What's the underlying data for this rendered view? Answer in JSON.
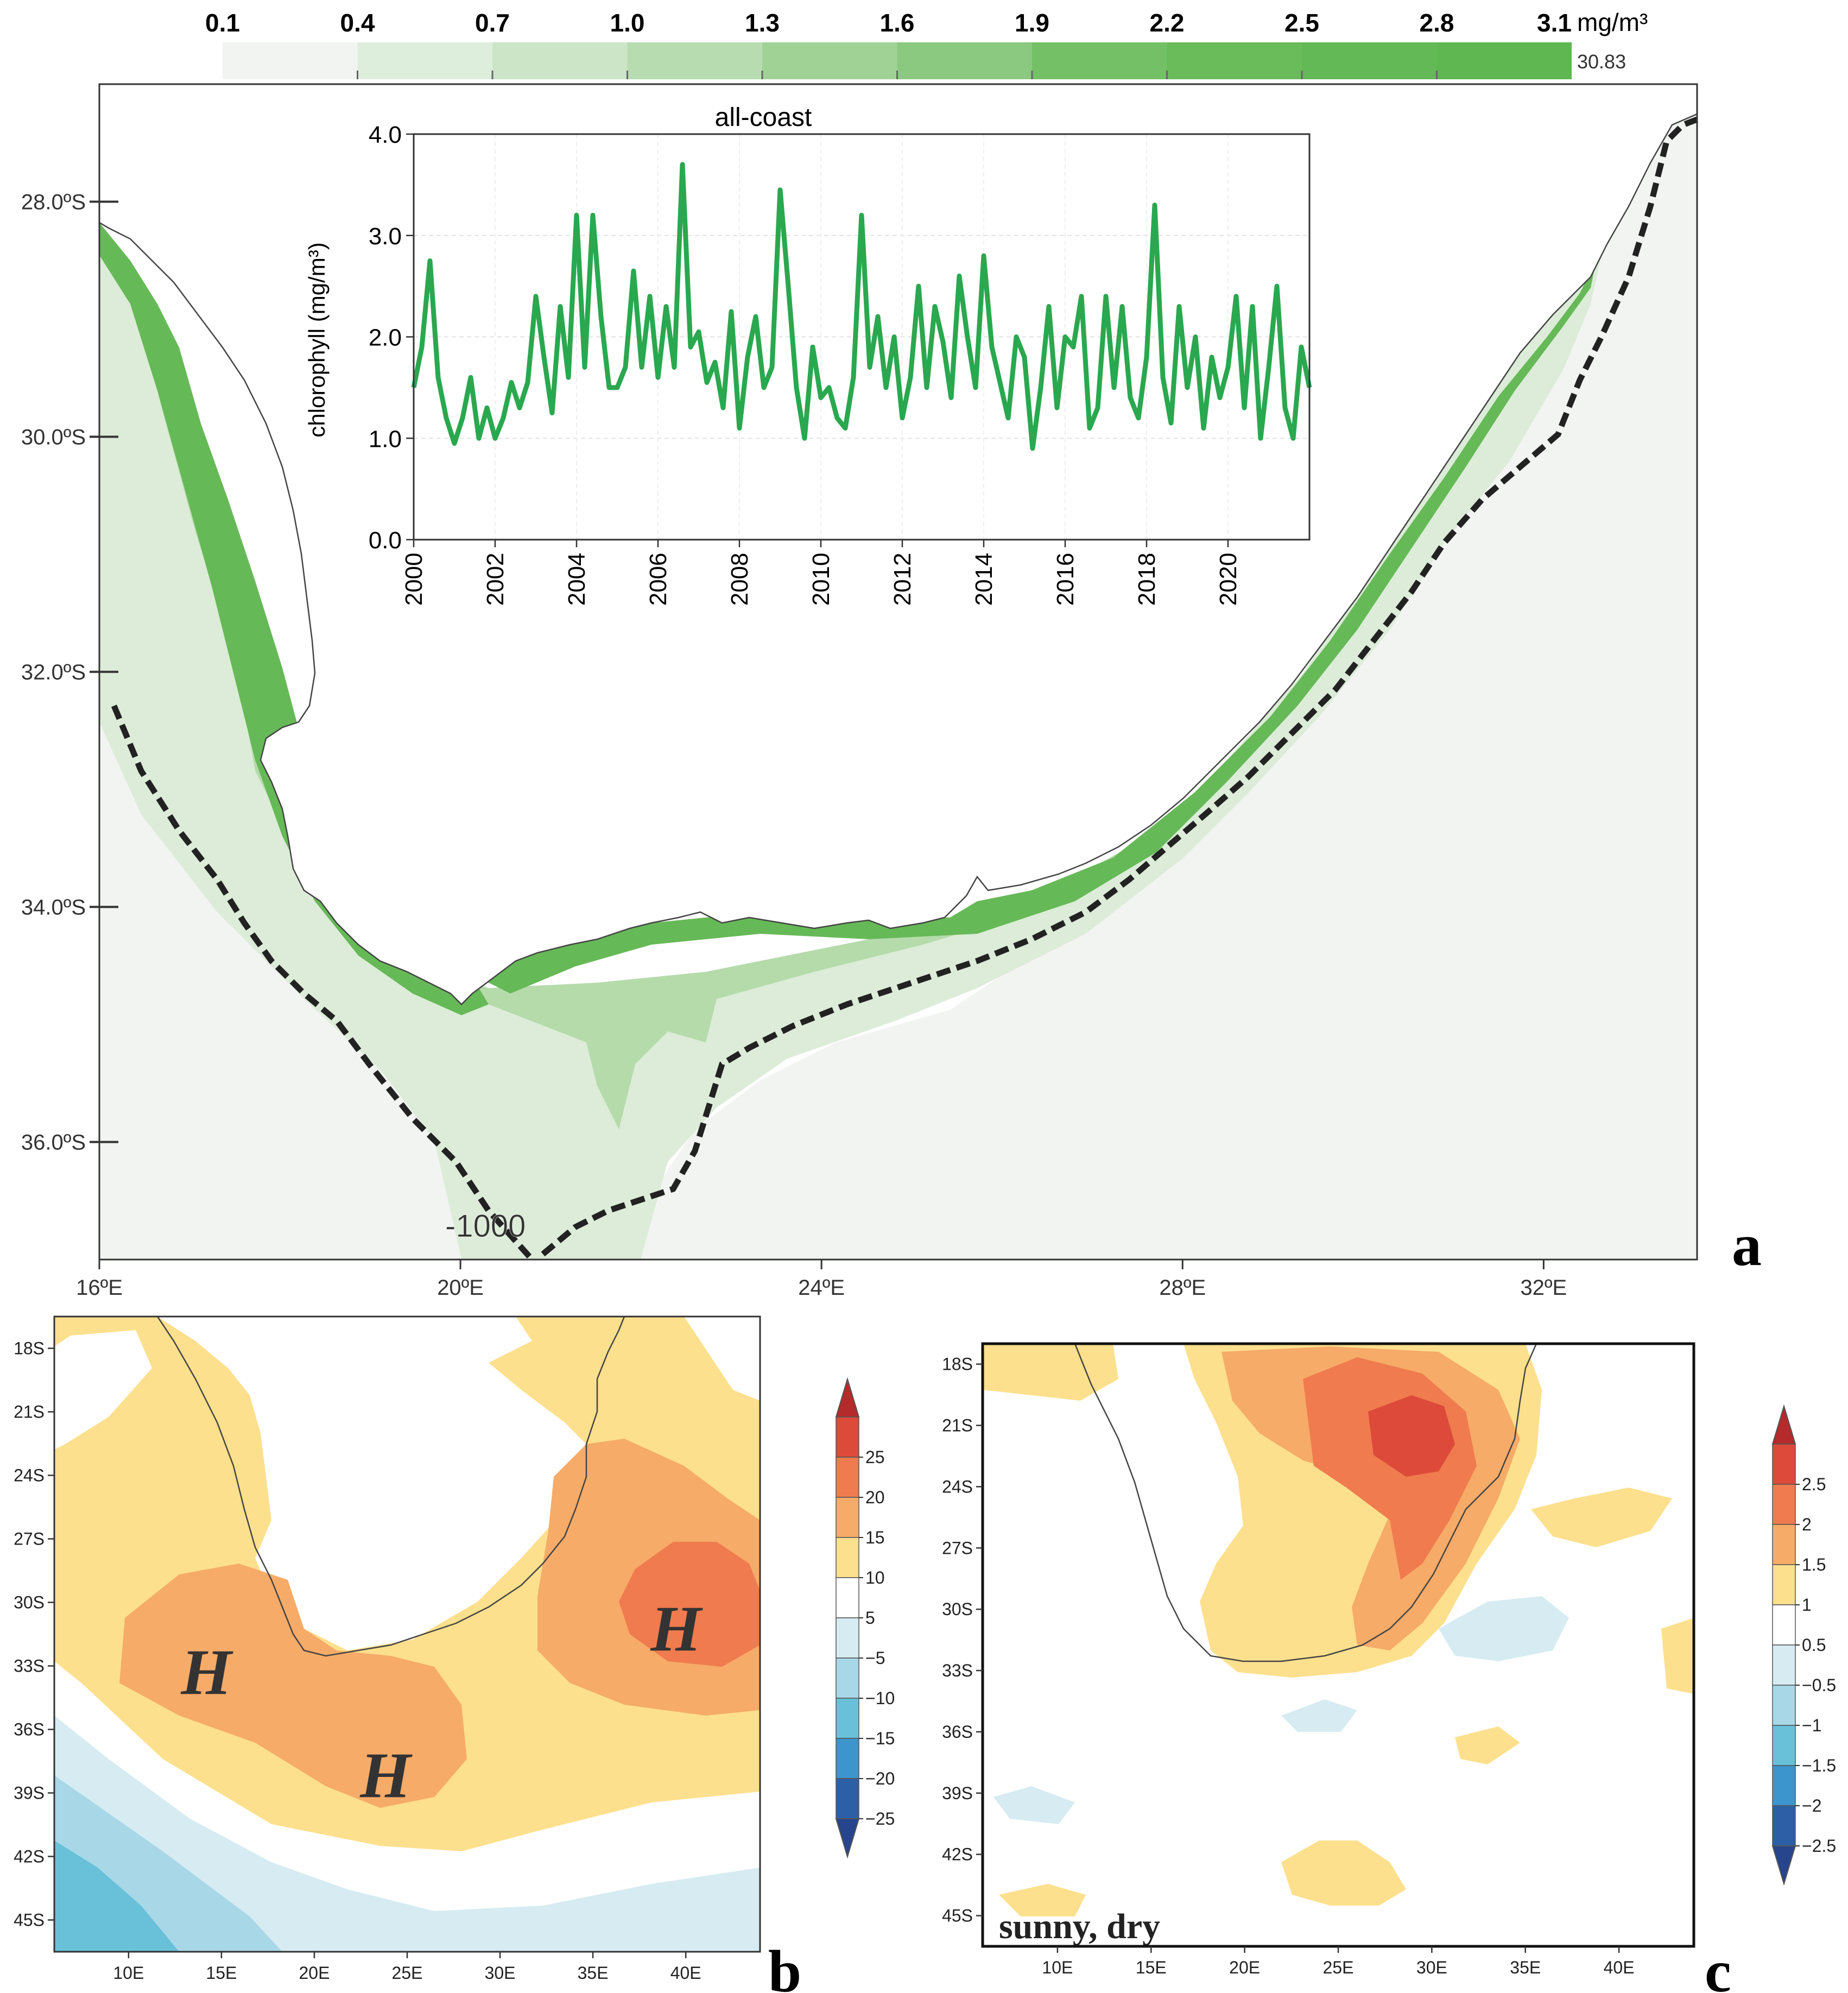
{
  "panel_letters": {
    "a": "a",
    "b": "b",
    "c": "c"
  },
  "chart_data": [
    {
      "id": "panel-a-map",
      "type": "heatmap",
      "title": "",
      "colorbar": {
        "ticks": [
          "0.1",
          "0.4",
          "0.7",
          "1.0",
          "1.3",
          "1.6",
          "1.9",
          "2.2",
          "2.5",
          "2.8",
          "3.1"
        ],
        "unit": "mg/m³",
        "max_label": "30.83",
        "colors": [
          "#f1f4f1",
          "#deeedc",
          "#cbe5c6",
          "#b7dcb0",
          "#a0d296",
          "#8ac97f",
          "#74c066",
          "#6abc5b",
          "#63b955",
          "#5fb751"
        ]
      },
      "x_ticks": [
        "16ºE",
        "20ºE",
        "24ºE",
        "28ºE",
        "32ºE"
      ],
      "x_values": [
        16,
        20,
        24,
        28,
        32
      ],
      "xlim": [
        16,
        33.7
      ],
      "y_ticks": [
        "28.0ºS",
        "30.0ºS",
        "32.0ºS",
        "34.0ºS",
        "36.0ºS"
      ],
      "y_values": [
        28,
        30,
        32,
        34,
        36
      ],
      "ylim": [
        27.0,
        37.0
      ],
      "contour_label": "-1000"
    },
    {
      "id": "panel-a-inset",
      "type": "line",
      "title": "all-coast",
      "xlabel": "",
      "ylabel": "chlorophyll (mg/m³)",
      "xlim": [
        2000,
        2022
      ],
      "ylim": [
        0,
        4
      ],
      "x_ticks": [
        "2000",
        "2002",
        "2004",
        "2006",
        "2008",
        "2010",
        "2012",
        "2014",
        "2016",
        "2018",
        "2020"
      ],
      "y_ticks": [
        "0.0",
        "1.0",
        "2.0",
        "3.0",
        "4.0"
      ],
      "line_color": "#2aa84f",
      "series": [
        {
          "name": "all-coast",
          "x": [
            2000.0,
            2000.2,
            2000.4,
            2000.6,
            2000.8,
            2001.0,
            2001.2,
            2001.4,
            2001.6,
            2001.8,
            2002.0,
            2002.2,
            2002.4,
            2002.6,
            2002.8,
            2003.0,
            2003.2,
            2003.4,
            2003.6,
            2003.8,
            2004.0,
            2004.2,
            2004.4,
            2004.6,
            2004.8,
            2005.0,
            2005.2,
            2005.4,
            2005.6,
            2005.8,
            2006.0,
            2006.2,
            2006.4,
            2006.6,
            2006.8,
            2007.0,
            2007.2,
            2007.4,
            2007.6,
            2007.8,
            2008.0,
            2008.2,
            2008.4,
            2008.6,
            2008.8,
            2009.0,
            2009.2,
            2009.4,
            2009.6,
            2009.8,
            2010.0,
            2010.2,
            2010.4,
            2010.6,
            2010.8,
            2011.0,
            2011.2,
            2011.4,
            2011.6,
            2011.8,
            2012.0,
            2012.2,
            2012.4,
            2012.6,
            2012.8,
            2013.0,
            2013.2,
            2013.4,
            2013.6,
            2013.8,
            2014.0,
            2014.2,
            2014.4,
            2014.6,
            2014.8,
            2015.0,
            2015.2,
            2015.4,
            2015.6,
            2015.8,
            2016.0,
            2016.2,
            2016.4,
            2016.6,
            2016.8,
            2017.0,
            2017.2,
            2017.4,
            2017.6,
            2017.8,
            2018.0,
            2018.2,
            2018.4,
            2018.6,
            2018.8,
            2019.0,
            2019.2,
            2019.4,
            2019.6,
            2019.8,
            2020.0,
            2020.2,
            2020.4,
            2020.6,
            2020.8,
            2021.0,
            2021.2,
            2021.4,
            2021.6,
            2021.8,
            2022.0
          ],
          "values": [
            1.5,
            1.9,
            2.75,
            1.6,
            1.2,
            0.95,
            1.2,
            1.6,
            1.0,
            1.3,
            1.0,
            1.2,
            1.55,
            1.3,
            1.55,
            2.4,
            1.8,
            1.25,
            2.3,
            1.6,
            3.2,
            1.7,
            3.2,
            2.2,
            1.5,
            1.5,
            1.7,
            2.65,
            1.7,
            2.4,
            1.6,
            2.3,
            1.7,
            3.7,
            1.9,
            2.05,
            1.55,
            1.75,
            1.3,
            2.25,
            1.1,
            1.8,
            2.2,
            1.5,
            1.7,
            3.45,
            2.5,
            1.5,
            1.0,
            1.9,
            1.4,
            1.5,
            1.2,
            1.1,
            1.6,
            3.2,
            1.7,
            2.2,
            1.5,
            2.0,
            1.2,
            1.6,
            2.5,
            1.5,
            2.3,
            1.95,
            1.4,
            2.6,
            2.0,
            1.5,
            2.8,
            1.9,
            1.55,
            1.2,
            2.0,
            1.8,
            0.9,
            1.5,
            2.3,
            1.3,
            2.0,
            1.9,
            2.4,
            1.1,
            1.3,
            2.4,
            1.5,
            2.3,
            1.4,
            1.2,
            1.8,
            3.3,
            1.6,
            1.15,
            2.3,
            1.5,
            2.0,
            1.1,
            1.8,
            1.4,
            1.7,
            2.4,
            1.3,
            2.3,
            1.0,
            1.7,
            2.5,
            1.3,
            1.0,
            1.9,
            1.5
          ]
        }
      ]
    },
    {
      "id": "panel-b-map",
      "type": "heatmap",
      "x_ticks": [
        "10E",
        "15E",
        "20E",
        "25E",
        "30E",
        "35E",
        "40E"
      ],
      "x_values": [
        10,
        15,
        20,
        25,
        30,
        35,
        40
      ],
      "xlim": [
        6,
        44
      ],
      "y_ticks": [
        "18S",
        "21S",
        "24S",
        "27S",
        "30S",
        "33S",
        "36S",
        "39S",
        "42S",
        "45S"
      ],
      "y_values": [
        18,
        21,
        24,
        27,
        30,
        33,
        36,
        39,
        42,
        45
      ],
      "ylim": [
        16.5,
        46.5
      ],
      "labels": [
        "H",
        "H",
        "H"
      ],
      "colorbar": {
        "ticks": [
          "25",
          "20",
          "15",
          "10",
          "5",
          "−5",
          "−10",
          "−15",
          "−20",
          "−25"
        ],
        "colors": [
          "#b52a2a",
          "#dd4a3a",
          "#f07b4e",
          "#f6ab68",
          "#fde08d",
          "#ffffff",
          "#d6ecf2",
          "#a8d8e8",
          "#68c1d9",
          "#3c95cc",
          "#2c5fa5",
          "#27458c"
        ]
      }
    },
    {
      "id": "panel-c-map",
      "type": "heatmap",
      "x_ticks": [
        "10E",
        "15E",
        "20E",
        "25E",
        "30E",
        "35E",
        "40E"
      ],
      "x_values": [
        10,
        15,
        20,
        25,
        30,
        35,
        40
      ],
      "xlim": [
        6,
        44
      ],
      "y_ticks": [
        "18S",
        "21S",
        "24S",
        "27S",
        "30S",
        "33S",
        "36S",
        "39S",
        "42S",
        "45S"
      ],
      "y_values": [
        18,
        21,
        24,
        27,
        30,
        33,
        36,
        39,
        42,
        45
      ],
      "ylim": [
        17,
        46.5
      ],
      "annotation": "sunny, dry",
      "colorbar": {
        "ticks": [
          "2.5",
          "2",
          "1.5",
          "1",
          "0.5",
          "−0.5",
          "−1",
          "−1.5",
          "−2",
          "−2.5"
        ],
        "colors": [
          "#b52a2a",
          "#dd4a3a",
          "#f07b4e",
          "#f6ab68",
          "#fde08d",
          "#ffffff",
          "#d6ecf2",
          "#a8d8e8",
          "#68c1d9",
          "#3c95cc",
          "#2c5fa5",
          "#27458c"
        ]
      }
    }
  ]
}
